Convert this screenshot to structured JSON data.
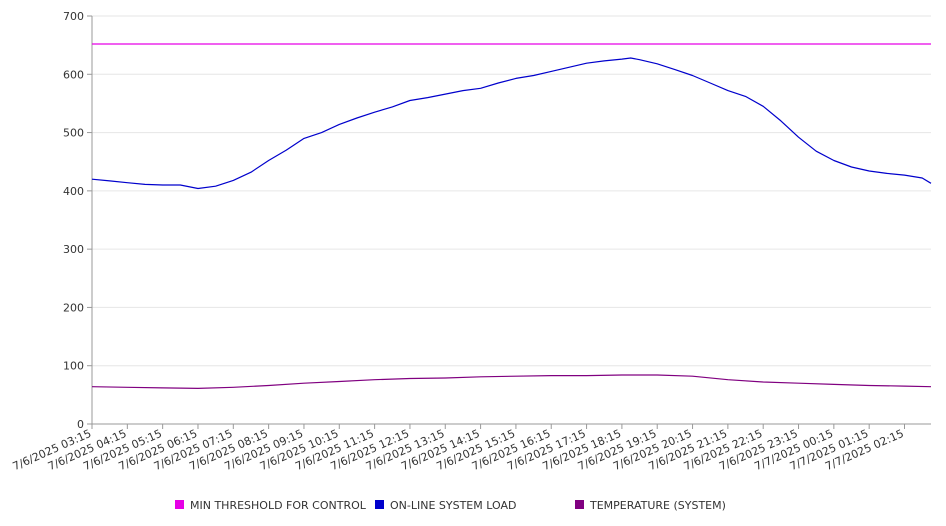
{
  "chart_data": {
    "type": "line",
    "title": "",
    "xlabel": "",
    "ylabel": "",
    "ylim": [
      0,
      700
    ],
    "y_ticks": [
      0,
      100,
      200,
      300,
      400,
      500,
      600,
      700
    ],
    "x_tick_labels": [
      "7/6/2025 03:15",
      "7/6/2025 04:15",
      "7/6/2025 05:15",
      "7/6/2025 06:15",
      "7/6/2025 07:15",
      "7/6/2025 08:15",
      "7/6/2025 09:15",
      "7/6/2025 10:15",
      "7/6/2025 11:15",
      "7/6/2025 12:15",
      "7/6/2025 13:15",
      "7/6/2025 14:15",
      "7/6/2025 15:15",
      "7/6/2025 16:15",
      "7/6/2025 17:15",
      "7/6/2025 18:15",
      "7/6/2025 19:15",
      "7/6/2025 20:15",
      "7/6/2025 21:15",
      "7/6/2025 22:15",
      "7/6/2025 23:15",
      "7/7/2025 00:15",
      "7/7/2025 01:15",
      "7/7/2025 02:15"
    ],
    "x_range": [
      "7/6/2025 03:15",
      "7/7/2025 03:00"
    ],
    "grid": true,
    "legend_position": "bottom",
    "series": [
      {
        "name": "MIN THRESHOLD FOR CONTROL",
        "color": "#e600e6",
        "x": [
          "7/6/2025 03:15",
          "7/7/2025 03:00"
        ],
        "values": [
          652,
          652
        ]
      },
      {
        "name": "ON-LINE SYSTEM LOAD",
        "color": "#0000cc",
        "x": [
          "7/6/2025 03:15",
          "7/6/2025 03:45",
          "7/6/2025 04:15",
          "7/6/2025 04:45",
          "7/6/2025 05:15",
          "7/6/2025 05:45",
          "7/6/2025 06:15",
          "7/6/2025 06:45",
          "7/6/2025 07:15",
          "7/6/2025 07:45",
          "7/6/2025 08:15",
          "7/6/2025 08:45",
          "7/6/2025 09:15",
          "7/6/2025 09:45",
          "7/6/2025 10:15",
          "7/6/2025 10:45",
          "7/6/2025 11:15",
          "7/6/2025 11:45",
          "7/6/2025 12:15",
          "7/6/2025 12:45",
          "7/6/2025 13:15",
          "7/6/2025 13:45",
          "7/6/2025 14:15",
          "7/6/2025 14:45",
          "7/6/2025 15:15",
          "7/6/2025 15:45",
          "7/6/2025 16:15",
          "7/6/2025 16:45",
          "7/6/2025 17:15",
          "7/6/2025 17:45",
          "7/6/2025 18:15",
          "7/6/2025 18:30",
          "7/6/2025 18:45",
          "7/6/2025 19:15",
          "7/6/2025 19:45",
          "7/6/2025 20:15",
          "7/6/2025 20:45",
          "7/6/2025 21:15",
          "7/6/2025 21:45",
          "7/6/2025 22:15",
          "7/6/2025 22:45",
          "7/6/2025 23:15",
          "7/6/2025 23:45",
          "7/7/2025 00:15",
          "7/7/2025 00:45",
          "7/7/2025 01:15",
          "7/7/2025 01:45",
          "7/7/2025 02:15",
          "7/7/2025 02:45",
          "7/7/2025 03:00"
        ],
        "values": [
          420,
          417,
          414,
          411,
          410,
          410,
          404,
          408,
          418,
          432,
          452,
          470,
          490,
          500,
          514,
          525,
          535,
          544,
          555,
          560,
          566,
          572,
          576,
          585,
          593,
          598,
          605,
          612,
          619,
          623,
          626,
          628,
          625,
          618,
          608,
          598,
          585,
          572,
          562,
          545,
          520,
          492,
          468,
          452,
          441,
          434,
          430,
          427,
          422,
          413
        ]
      },
      {
        "name": "TEMPERATURE (SYSTEM)",
        "color": "#800080",
        "x": [
          "7/6/2025 03:15",
          "7/6/2025 04:15",
          "7/6/2025 05:15",
          "7/6/2025 06:15",
          "7/6/2025 07:15",
          "7/6/2025 08:15",
          "7/6/2025 09:15",
          "7/6/2025 10:15",
          "7/6/2025 11:15",
          "7/6/2025 12:15",
          "7/6/2025 13:15",
          "7/6/2025 14:15",
          "7/6/2025 15:15",
          "7/6/2025 16:15",
          "7/6/2025 17:15",
          "7/6/2025 18:15",
          "7/6/2025 19:15",
          "7/6/2025 20:15",
          "7/6/2025 21:15",
          "7/6/2025 22:15",
          "7/6/2025 23:15",
          "7/7/2025 00:15",
          "7/7/2025 01:15",
          "7/7/2025 02:15",
          "7/7/2025 03:00"
        ],
        "values": [
          64,
          63,
          62,
          61,
          63,
          66,
          70,
          73,
          76,
          78,
          79,
          81,
          82,
          83,
          83,
          84,
          84,
          82,
          76,
          72,
          70,
          68,
          66,
          65,
          64
        ]
      }
    ]
  }
}
